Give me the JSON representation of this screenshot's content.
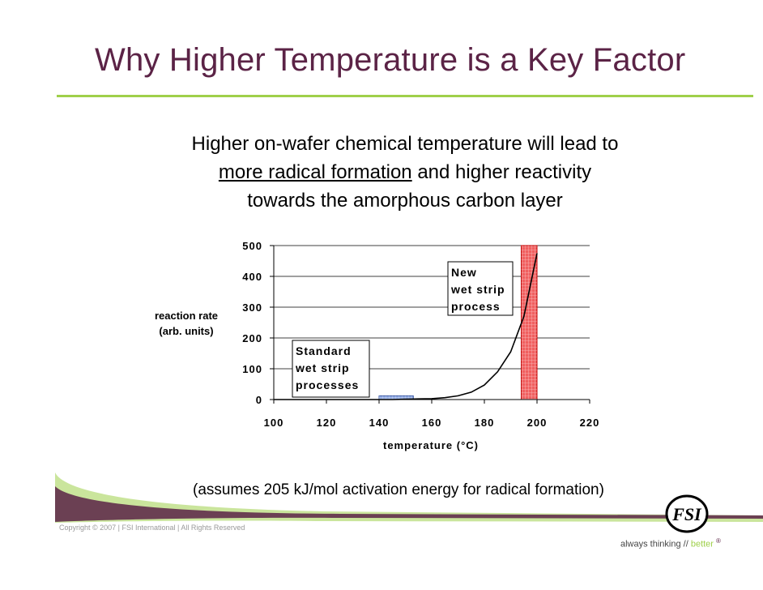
{
  "slide": {
    "title": "Why Higher Temperature is a Key Factor",
    "subtitle_line1": "Higher on-wafer chemical temperature will lead to",
    "subtitle_line2_underlined": "more radical formation",
    "subtitle_line2_rest": " and higher reactivity",
    "subtitle_line3": "towards the amorphous carbon layer",
    "note": "(assumes 205 kJ/mol activation energy for radical formation)",
    "copyright": "Copyright © 2007  |  FSI International  |  All Rights Reserved",
    "tagline_prefix": "always thinking // ",
    "tagline_highlight": "better",
    "tagline_mark": "®",
    "logo_text": "FSI",
    "colors": {
      "title": "#5b2346",
      "accent": "#9fd04a"
    }
  },
  "chart_data": {
    "type": "line",
    "xlabel": "temperature (°C)",
    "ylabel_line1": "reaction rate",
    "ylabel_line2": "(arb. units)",
    "xlim": [
      100,
      220
    ],
    "ylim": [
      0,
      500
    ],
    "xticks": [
      100,
      120,
      140,
      160,
      180,
      200,
      220
    ],
    "yticks": [
      0,
      100,
      200,
      300,
      400,
      500
    ],
    "grid": "horizontal",
    "series": [
      {
        "x": [
          100,
          105,
          110,
          115,
          120,
          125,
          130,
          135,
          140,
          145,
          150,
          155,
          160,
          165,
          170,
          175,
          180,
          185,
          190,
          195,
          200
        ],
        "values": [
          0,
          0,
          0,
          0,
          0,
          0,
          0,
          0,
          0,
          0,
          1,
          2,
          3,
          6,
          12,
          24,
          47,
          90,
          155,
          270,
          475
        ]
      }
    ],
    "regions": [
      {
        "x_range": [
          140,
          153
        ],
        "y_range": [
          0,
          12
        ],
        "color": "#9db4e8"
      },
      {
        "x_range": [
          194,
          200
        ],
        "y_range": [
          0,
          500
        ],
        "color": "#f06060"
      }
    ],
    "annotations": [
      {
        "lines": [
          "Standard",
          "wet strip",
          "processes"
        ]
      },
      {
        "lines": [
          "New",
          "wet strip",
          "process"
        ]
      }
    ]
  }
}
